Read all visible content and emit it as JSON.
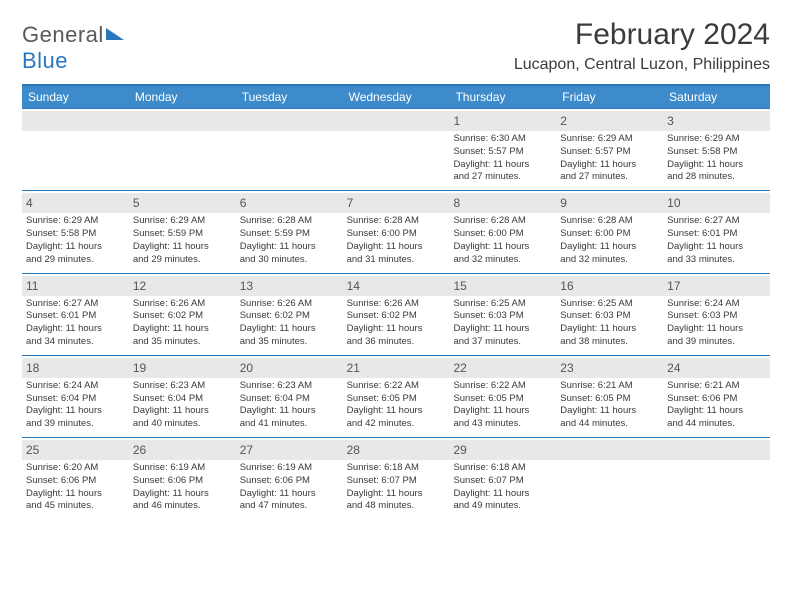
{
  "logo": {
    "word1": "General",
    "word2": "Blue"
  },
  "title": "February 2024",
  "location": "Lucapon, Central Luzon, Philippines",
  "header_bg": "#3d8bca",
  "border_color": "#2977bd",
  "daynum_bg": "#e8e8e8",
  "text_color": "#3a3a3a",
  "dow": [
    "Sunday",
    "Monday",
    "Tuesday",
    "Wednesday",
    "Thursday",
    "Friday",
    "Saturday"
  ],
  "weeks": [
    [
      null,
      null,
      null,
      null,
      {
        "n": "1",
        "sr": "6:30 AM",
        "ss": "5:57 PM",
        "dlA": "11 hours",
        "dlB": "and 27 minutes."
      },
      {
        "n": "2",
        "sr": "6:29 AM",
        "ss": "5:57 PM",
        "dlA": "11 hours",
        "dlB": "and 27 minutes."
      },
      {
        "n": "3",
        "sr": "6:29 AM",
        "ss": "5:58 PM",
        "dlA": "11 hours",
        "dlB": "and 28 minutes."
      }
    ],
    [
      {
        "n": "4",
        "sr": "6:29 AM",
        "ss": "5:58 PM",
        "dlA": "11 hours",
        "dlB": "and 29 minutes."
      },
      {
        "n": "5",
        "sr": "6:29 AM",
        "ss": "5:59 PM",
        "dlA": "11 hours",
        "dlB": "and 29 minutes."
      },
      {
        "n": "6",
        "sr": "6:28 AM",
        "ss": "5:59 PM",
        "dlA": "11 hours",
        "dlB": "and 30 minutes."
      },
      {
        "n": "7",
        "sr": "6:28 AM",
        "ss": "6:00 PM",
        "dlA": "11 hours",
        "dlB": "and 31 minutes."
      },
      {
        "n": "8",
        "sr": "6:28 AM",
        "ss": "6:00 PM",
        "dlA": "11 hours",
        "dlB": "and 32 minutes."
      },
      {
        "n": "9",
        "sr": "6:28 AM",
        "ss": "6:00 PM",
        "dlA": "11 hours",
        "dlB": "and 32 minutes."
      },
      {
        "n": "10",
        "sr": "6:27 AM",
        "ss": "6:01 PM",
        "dlA": "11 hours",
        "dlB": "and 33 minutes."
      }
    ],
    [
      {
        "n": "11",
        "sr": "6:27 AM",
        "ss": "6:01 PM",
        "dlA": "11 hours",
        "dlB": "and 34 minutes."
      },
      {
        "n": "12",
        "sr": "6:26 AM",
        "ss": "6:02 PM",
        "dlA": "11 hours",
        "dlB": "and 35 minutes."
      },
      {
        "n": "13",
        "sr": "6:26 AM",
        "ss": "6:02 PM",
        "dlA": "11 hours",
        "dlB": "and 35 minutes."
      },
      {
        "n": "14",
        "sr": "6:26 AM",
        "ss": "6:02 PM",
        "dlA": "11 hours",
        "dlB": "and 36 minutes."
      },
      {
        "n": "15",
        "sr": "6:25 AM",
        "ss": "6:03 PM",
        "dlA": "11 hours",
        "dlB": "and 37 minutes."
      },
      {
        "n": "16",
        "sr": "6:25 AM",
        "ss": "6:03 PM",
        "dlA": "11 hours",
        "dlB": "and 38 minutes."
      },
      {
        "n": "17",
        "sr": "6:24 AM",
        "ss": "6:03 PM",
        "dlA": "11 hours",
        "dlB": "and 39 minutes."
      }
    ],
    [
      {
        "n": "18",
        "sr": "6:24 AM",
        "ss": "6:04 PM",
        "dlA": "11 hours",
        "dlB": "and 39 minutes."
      },
      {
        "n": "19",
        "sr": "6:23 AM",
        "ss": "6:04 PM",
        "dlA": "11 hours",
        "dlB": "and 40 minutes."
      },
      {
        "n": "20",
        "sr": "6:23 AM",
        "ss": "6:04 PM",
        "dlA": "11 hours",
        "dlB": "and 41 minutes."
      },
      {
        "n": "21",
        "sr": "6:22 AM",
        "ss": "6:05 PM",
        "dlA": "11 hours",
        "dlB": "and 42 minutes."
      },
      {
        "n": "22",
        "sr": "6:22 AM",
        "ss": "6:05 PM",
        "dlA": "11 hours",
        "dlB": "and 43 minutes."
      },
      {
        "n": "23",
        "sr": "6:21 AM",
        "ss": "6:05 PM",
        "dlA": "11 hours",
        "dlB": "and 44 minutes."
      },
      {
        "n": "24",
        "sr": "6:21 AM",
        "ss": "6:06 PM",
        "dlA": "11 hours",
        "dlB": "and 44 minutes."
      }
    ],
    [
      {
        "n": "25",
        "sr": "6:20 AM",
        "ss": "6:06 PM",
        "dlA": "11 hours",
        "dlB": "and 45 minutes."
      },
      {
        "n": "26",
        "sr": "6:19 AM",
        "ss": "6:06 PM",
        "dlA": "11 hours",
        "dlB": "and 46 minutes."
      },
      {
        "n": "27",
        "sr": "6:19 AM",
        "ss": "6:06 PM",
        "dlA": "11 hours",
        "dlB": "and 47 minutes."
      },
      {
        "n": "28",
        "sr": "6:18 AM",
        "ss": "6:07 PM",
        "dlA": "11 hours",
        "dlB": "and 48 minutes."
      },
      {
        "n": "29",
        "sr": "6:18 AM",
        "ss": "6:07 PM",
        "dlA": "11 hours",
        "dlB": "and 49 minutes."
      },
      null,
      null
    ]
  ],
  "labels": {
    "sunrise": "Sunrise: ",
    "sunset": "Sunset: ",
    "daylight": "Daylight: "
  }
}
